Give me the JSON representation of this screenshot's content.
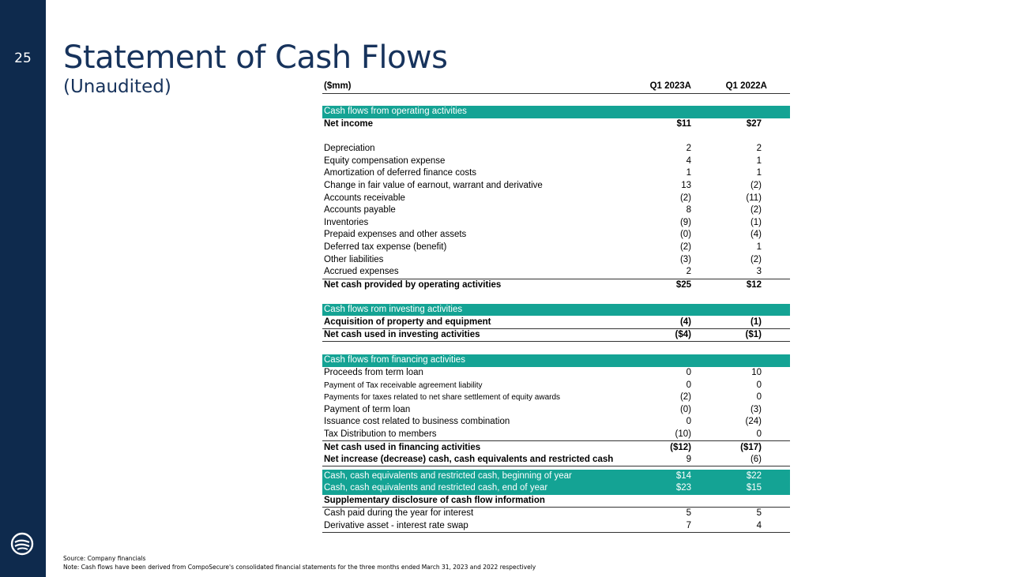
{
  "page_number": "25",
  "title": "Statement of Cash Flows",
  "subtitle": "(Unaudited)",
  "table": {
    "headers": [
      "($mm)",
      "Q1 2023A",
      "Q1 2022A"
    ],
    "operating_header": "Cash flows from operating activities",
    "net_income": {
      "label": "Net income",
      "a": "$11",
      "b": "$27"
    },
    "operating_items": [
      {
        "label": "Depreciation",
        "a": "2",
        "b": "2"
      },
      {
        "label": "Equity compensation expense",
        "a": "4",
        "b": "1"
      },
      {
        "label": "Amortization of deferred finance costs",
        "a": "1",
        "b": "1"
      },
      {
        "label": "Change in fair value of earnout, warrant and derivative",
        "a": "13",
        "b": "(2)"
      },
      {
        "label": "Accounts receivable",
        "a": "(2)",
        "b": "(11)"
      },
      {
        "label": "Accounts payable",
        "a": "8",
        "b": "(2)"
      },
      {
        "label": "Inventories",
        "a": "(9)",
        "b": "(1)"
      },
      {
        "label": "Prepaid expenses and other assets",
        "a": "(0)",
        "b": "(4)"
      },
      {
        "label": "Deferred tax expense (benefit)",
        "a": "(2)",
        "b": "1"
      },
      {
        "label": "Other liabilities",
        "a": "(3)",
        "b": "(2)"
      },
      {
        "label": "Accrued expenses",
        "a": "2",
        "b": "3"
      }
    ],
    "operating_total": {
      "label": "Net cash provided by operating activities",
      "a": "$25",
      "b": "$12"
    },
    "investing_header": "Cash flows rom investing activities",
    "investing_item": {
      "label": "Acquisition of property and equipment",
      "a": "(4)",
      "b": "(1)"
    },
    "investing_total": {
      "label": "Net cash used in investing activities",
      "a": "($4)",
      "b": "($1)"
    },
    "financing_header": "Cash flows from financing activities",
    "financing_items": [
      {
        "label": "Proceeds from term loan",
        "a": "0",
        "b": "10"
      },
      {
        "label": "Payment of Tax receivable agreement liability",
        "a": "0",
        "b": "0"
      },
      {
        "label": "Payments for taxes related to net share settlement of equity awards",
        "a": "(2)",
        "b": "0"
      },
      {
        "label": "Payment of term loan",
        "a": "(0)",
        "b": "(3)"
      },
      {
        "label": "Issuance cost related to business combination",
        "a": "0",
        "b": "(24)"
      },
      {
        "label": "Tax Distribution to members",
        "a": "(10)",
        "b": "0"
      }
    ],
    "financing_total": {
      "label": "Net cash used in financing activities",
      "a": "($12)",
      "b": "($17)"
    },
    "net_increase": {
      "label": "Net increase (decrease) cash, cash equivalents and restricted cash",
      "a": "9",
      "b": "(6)"
    },
    "cash_begin": {
      "label": "Cash, cash equivalents and restricted cash, beginning of year",
      "a": "$14",
      "b": "$22"
    },
    "cash_end": {
      "label": "Cash, cash equivalents and restricted cash, end of year",
      "a": "$23",
      "b": "$15"
    },
    "supplementary_header": "Supplementary disclosure of cash flow information",
    "supplementary_items": [
      {
        "label": "Cash paid during the year for interest",
        "a": "5",
        "b": "5"
      },
      {
        "label": "Derivative asset - interest rate swap",
        "a": "7",
        "b": "4"
      }
    ]
  },
  "footnotes": {
    "source": "Source: Company financials",
    "note": "Note: Cash flows have been derived from CompoSecure's consolidated financial statements for the three months ended March 31, 2023 and 2022 respectively"
  },
  "colors": {
    "sidebar": "#0e2a4d",
    "title": "#17335c",
    "section": "#14a394"
  }
}
